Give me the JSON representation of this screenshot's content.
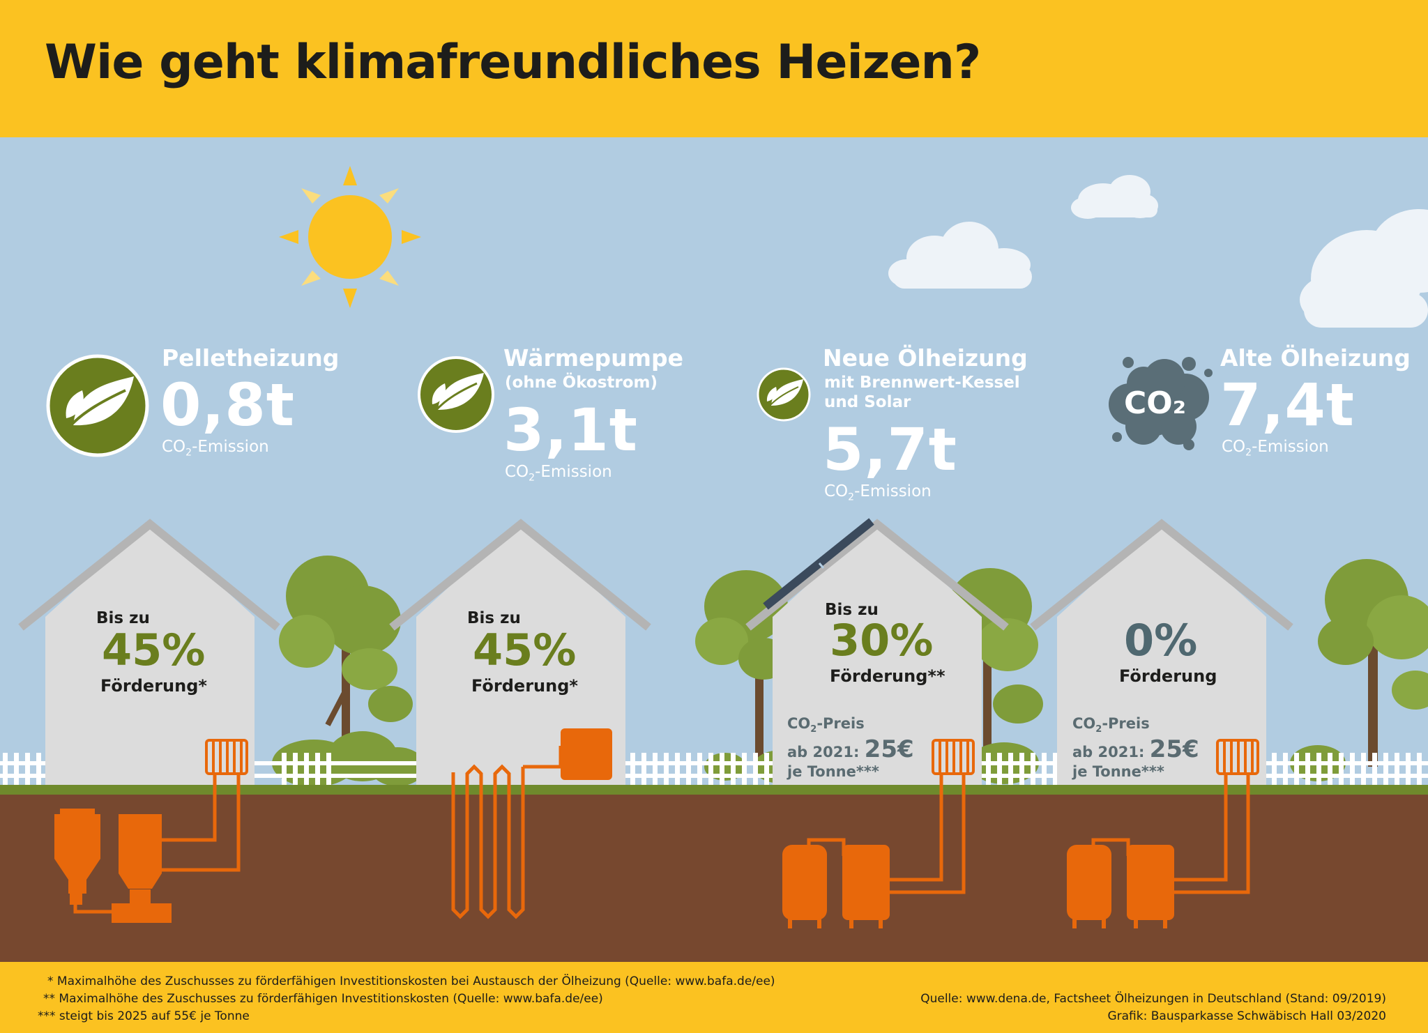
{
  "title": "Wie geht klimafreundliches Heizen?",
  "emission_unit_label": "CO₂-Emission",
  "systems": [
    {
      "name": "Pelletheizung",
      "subtitle": "",
      "emission": "0,8t",
      "icon": "leaf-icon",
      "bis_zu": "Bis zu",
      "foerderung_pct": "45%",
      "foerderung_label": "Förderung*",
      "co2_price": null,
      "equipment": "pellet-boiler-and-silo"
    },
    {
      "name": "Wärmepumpe",
      "subtitle": "(ohne Ökostrom)",
      "emission": "3,1t",
      "icon": "leaf-icon",
      "bis_zu": "Bis zu",
      "foerderung_pct": "45%",
      "foerderung_label": "Förderung*",
      "co2_price": null,
      "equipment": "ground-source-heat-pump"
    },
    {
      "name": "Neue Ölheizung",
      "subtitle_lines": [
        "mit Brennwert-Kessel",
        "und Solar"
      ],
      "emission": "5,7t",
      "icon": "leaf-icon",
      "bis_zu": "Bis zu",
      "foerderung_pct": "30%",
      "foerderung_label": "Förderung**",
      "co2_price": {
        "label": "CO₂-Preis",
        "from": "ab 2021:",
        "value": "25€",
        "unit": "je Tonne***"
      },
      "equipment": "oil-tanks-and-boiler"
    },
    {
      "name": "Alte Ölheizung",
      "subtitle": "",
      "emission": "7,4t",
      "icon": "co2-cloud-icon",
      "icon_label": "CO₂",
      "bis_zu": "",
      "foerderung_pct": "0%",
      "foerderung_label": "Förderung",
      "co2_price": {
        "label": "CO₂-Preis",
        "from": "ab 2021:",
        "value": "25€",
        "unit": "je Tonne***"
      },
      "equipment": "oil-tanks-and-boiler"
    }
  ],
  "footnotes": [
    "* Maximalhöhe des Zuschusses zu förderfähigen Investitionskosten bei Austausch der Ölheizung (Quelle: www.bafa.de/ee)",
    "** Maximalhöhe des Zuschusses zu förderfähigen Investitionskosten (Quelle: www.bafa.de/ee)",
    "*** steigt bis 2025 auf 55€ je Tonne"
  ],
  "source": "Quelle: www.dena.de, Factsheet Ölheizungen in Deutschland (Stand: 09/2019)",
  "credit": "Grafik: Bausparkasse Schwäbisch Hall 03/2020",
  "colors": {
    "header": "#fbc221",
    "sky": "#b1cce1",
    "ground": "#77482f",
    "grass": "#6f8a2c",
    "green_accent": "#6a7e1e",
    "slate_accent": "#4f6870",
    "orange": "#e8680b",
    "house": "#dcdcdc",
    "roof": "#b4b4b4"
  }
}
